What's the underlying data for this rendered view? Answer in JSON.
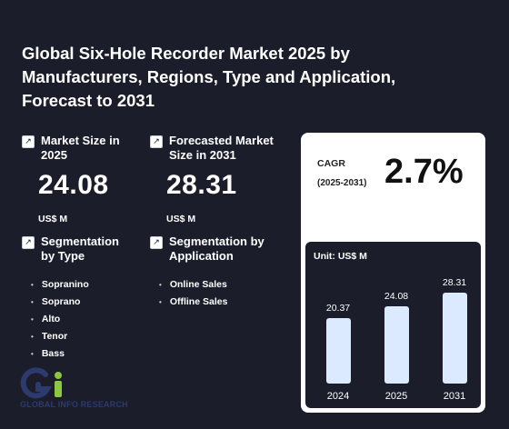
{
  "title": "Global Six-Hole Recorder Market 2025 by Manufacturers, Regions, Type and Application, Forecast to 2031",
  "market_size": {
    "label": "Market Size in 2025",
    "value": "24.08",
    "unit": "US$ M"
  },
  "forecast_size": {
    "label": "Forecasted Market Size in 2031",
    "value": "28.31",
    "unit": "US$ M"
  },
  "seg_type": {
    "label": "Segmentation by Type",
    "items": [
      "Sopranino",
      "Soprano",
      "Alto",
      "Tenor",
      "Bass"
    ]
  },
  "seg_app": {
    "label": "Segmentation by Application",
    "items": [
      "Online Sales",
      "Offline Sales"
    ]
  },
  "cagr": {
    "label": "CAGR",
    "years": "(2025-2031)",
    "value": "2.7%"
  },
  "chart_data": {
    "type": "bar",
    "unit_label": "Unit: US$ M",
    "categories": [
      "2024",
      "2025",
      "2031"
    ],
    "values": [
      20.37,
      24.08,
      28.31
    ],
    "value_labels": [
      "20.37",
      "24.08",
      "28.31"
    ]
  },
  "icons": {
    "stat_icon": "trend-arrow-icon",
    "logo": "gir-logo-icon"
  },
  "logo_text": "GLOBAL INFO RESEARCH",
  "colors": {
    "background": "#1c1d2b",
    "bar": "#dbeafe",
    "card": "#ffffff",
    "logo_blue": "#2c3a6e",
    "logo_green": "#8dc63f"
  }
}
